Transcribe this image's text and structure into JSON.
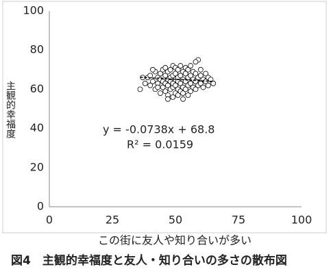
{
  "chart_data": {
    "type": "scatter",
    "title": "図4　主観的幸福度と友人・知り合いの多さの散布図",
    "x_label": "この街に友人や知り合いが多い",
    "y_label": "主観的幸福度",
    "x": [
      36,
      38,
      39,
      40,
      40,
      41,
      42,
      42,
      43,
      43,
      44,
      44,
      44,
      45,
      45,
      45,
      46,
      46,
      46,
      46,
      47,
      47,
      47,
      47,
      48,
      48,
      48,
      48,
      49,
      49,
      49,
      49,
      49,
      50,
      50,
      50,
      50,
      50,
      51,
      51,
      51,
      51,
      51,
      52,
      52,
      52,
      52,
      53,
      53,
      53,
      53,
      54,
      54,
      54,
      54,
      55,
      55,
      55,
      55,
      56,
      56,
      56,
      57,
      57,
      57,
      58,
      58,
      58,
      59,
      59,
      59,
      60,
      60,
      60,
      61,
      61,
      62,
      62,
      63,
      63,
      64,
      65,
      37,
      41,
      58,
      47,
      53,
      43,
      56
    ],
    "values": [
      60,
      63,
      66,
      62,
      67,
      64,
      60,
      69,
      63,
      66,
      58,
      65,
      68,
      61,
      64,
      70,
      59,
      63,
      67,
      71,
      57,
      62,
      65,
      69,
      60,
      64,
      66,
      70,
      56,
      61,
      63,
      67,
      72,
      58,
      62,
      65,
      68,
      71,
      57,
      60,
      64,
      66,
      70,
      59,
      63,
      67,
      72,
      58,
      61,
      65,
      69,
      60,
      64,
      68,
      71,
      57,
      62,
      66,
      70,
      59,
      63,
      67,
      61,
      65,
      69,
      60,
      64,
      68,
      62,
      66,
      75,
      63,
      67,
      70,
      61,
      65,
      64,
      68,
      62,
      66,
      65,
      63,
      66,
      70,
      74,
      55,
      55,
      61,
      72
    ],
    "marker_color": "#000000",
    "trendline": {
      "slope": -0.0738,
      "intercept": 68.8,
      "x": [
        36,
        65
      ],
      "color": "#000000",
      "equation": "y = -0.0738x + 68.8",
      "r2": "R² = 0.0159"
    },
    "xlim": [
      0,
      100
    ],
    "xticks": [
      0,
      25,
      50,
      75,
      100
    ],
    "ylim": [
      0,
      100
    ],
    "yticks": [
      0,
      20,
      40,
      60,
      80,
      100
    ]
  }
}
